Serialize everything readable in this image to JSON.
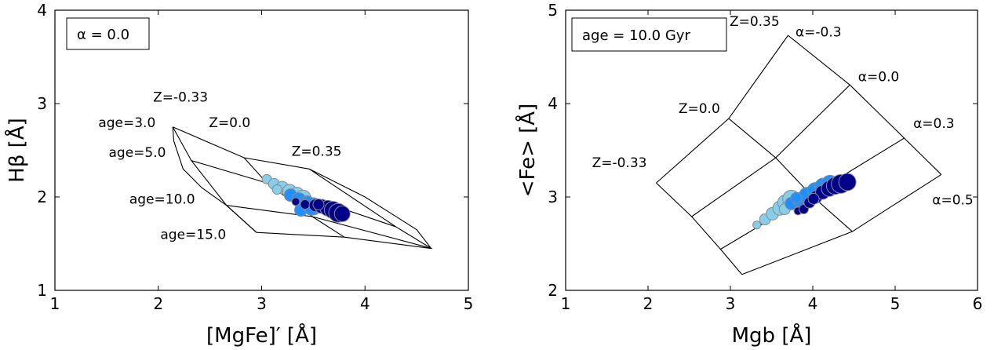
{
  "chart_data": [
    {
      "type": "scatter",
      "panel": "left",
      "xlabel": "[MgFe]′ [Å]",
      "ylabel": "Hβ [Å]",
      "xlim": [
        1,
        5
      ],
      "ylim": [
        1,
        4
      ],
      "xticks": [
        1,
        2,
        3,
        4,
        5
      ],
      "yticks": [
        1,
        2,
        3,
        4
      ],
      "grid": false,
      "legend_box": "α = 0.0",
      "legend_placement": "top-left",
      "model_grid": {
        "params_a": [
          "age=3.0",
          "age=5.0",
          "age=10.0",
          "age=15.0"
        ],
        "params_b": [
          "Z=-0.33",
          "Z=0.0",
          "Z=0.35"
        ],
        "points": [
          [
            [
              2.14,
              2.75
            ],
            [
              2.83,
              2.42
            ],
            [
              3.46,
              2.3
            ]
          ],
          [
            [
              2.32,
              2.39
            ],
            [
              3.05,
              2.15
            ],
            [
              4.3,
              1.68
            ]
          ],
          [
            [
              2.66,
              1.91
            ],
            [
              3.49,
              1.79
            ],
            [
              4.64,
              1.45
            ]
          ],
          [
            [
              2.95,
              1.62
            ],
            [
              3.8,
              1.57
            ],
            [
              4.63,
              1.45
            ]
          ]
        ],
        "outline_extra": [
          [
            2.14,
            2.75
          ],
          [
            2.15,
            2.6
          ],
          [
            2.24,
            2.3
          ],
          [
            2.42,
            2.1
          ],
          [
            2.66,
            1.91
          ],
          [
            2.95,
            1.62
          ]
        ],
        "right_edge": [
          [
            3.46,
            2.3
          ],
          [
            4.0,
            2.0
          ],
          [
            4.5,
            1.65
          ],
          [
            4.64,
            1.45
          ]
        ]
      },
      "annotations": [
        {
          "text": "Z=-0.33",
          "x": 1.95,
          "y": 3.02
        },
        {
          "text": "Z=0.0",
          "x": 2.49,
          "y": 2.75
        },
        {
          "text": "Z=0.35",
          "x": 3.29,
          "y": 2.44
        },
        {
          "text": "age=3.0",
          "x": 1.42,
          "y": 2.75
        },
        {
          "text": "age=5.0",
          "x": 1.52,
          "y": 2.43
        },
        {
          "text": "age=10.0",
          "x": 1.72,
          "y": 1.93
        },
        {
          "text": "age=15.0",
          "x": 2.02,
          "y": 1.55
        }
      ],
      "series": [
        {
          "color": "#87ceeb",
          "points": [
            [
              3.05,
              2.19,
              6
            ],
            [
              3.12,
              2.14,
              7
            ],
            [
              3.2,
              2.1,
              8
            ],
            [
              3.27,
              2.06,
              9
            ],
            [
              3.34,
              2.02,
              10
            ],
            [
              3.4,
              1.99,
              10
            ],
            [
              3.15,
              2.08,
              6
            ]
          ]
        },
        {
          "color": "#1e90ff",
          "points": [
            [
              3.28,
              2.02,
              8
            ],
            [
              3.36,
              1.97,
              9
            ],
            [
              3.44,
              1.93,
              10
            ],
            [
              3.5,
              1.9,
              11
            ],
            [
              3.38,
              1.86,
              8
            ],
            [
              3.48,
              1.88,
              9
            ],
            [
              3.45,
              1.95,
              7
            ]
          ]
        },
        {
          "color": "#00008b",
          "points": [
            [
              3.33,
              1.95,
              5
            ],
            [
              3.42,
              1.92,
              6
            ],
            [
              3.52,
              1.91,
              8
            ],
            [
              3.58,
              1.9,
              9
            ],
            [
              3.64,
              1.88,
              10
            ],
            [
              3.69,
              1.86,
              11
            ],
            [
              3.74,
              1.83,
              12
            ],
            [
              3.78,
              1.82,
              10
            ],
            [
              3.55,
              1.92,
              7
            ]
          ]
        }
      ]
    },
    {
      "type": "scatter",
      "panel": "right",
      "xlabel": "Mgb [Å]",
      "ylabel": "<Fe> [Å]",
      "xlim": [
        1,
        6
      ],
      "ylim": [
        2,
        5
      ],
      "xticks": [
        1,
        2,
        3,
        4,
        5,
        6
      ],
      "yticks": [
        2,
        3,
        4,
        5
      ],
      "grid": false,
      "legend_box": "age = 10.0 Gyr",
      "legend_placement": "top-left",
      "model_grid": {
        "params_a": [
          "α=-0.3",
          "α=0.0",
          "α=0.3",
          "α=0.5"
        ],
        "params_b": [
          "Z=-0.33",
          "Z=0.0",
          "Z=0.35"
        ],
        "points": [
          [
            [
              2.1,
              3.15
            ],
            [
              2.98,
              3.84
            ],
            [
              3.7,
              4.73
            ]
          ],
          [
            [
              2.53,
              2.79
            ],
            [
              3.55,
              3.42
            ],
            [
              4.45,
              4.2
            ]
          ],
          [
            [
              2.88,
              2.44
            ],
            [
              3.98,
              3.02
            ],
            [
              5.11,
              3.63
            ]
          ],
          [
            [
              3.14,
              2.17
            ],
            [
              4.48,
              2.63
            ],
            [
              5.56,
              3.24
            ]
          ]
        ]
      },
      "annotations": [
        {
          "text": "Z=0.35",
          "x": 2.99,
          "y": 4.83
        },
        {
          "text": "α=-0.3",
          "x": 3.79,
          "y": 4.72
        },
        {
          "text": "α=0.0",
          "x": 4.55,
          "y": 4.24
        },
        {
          "text": "Z=0.0",
          "x": 2.37,
          "y": 3.9
        },
        {
          "text": "α=0.3",
          "x": 5.22,
          "y": 3.74
        },
        {
          "text": "Z=-0.33",
          "x": 1.32,
          "y": 3.32
        },
        {
          "text": "α=0.5",
          "x": 5.45,
          "y": 2.92
        }
      ],
      "series": [
        {
          "color": "#87ceeb",
          "points": [
            [
              3.32,
              2.7,
              5
            ],
            [
              3.42,
              2.76,
              7
            ],
            [
              3.51,
              2.82,
              8
            ],
            [
              3.6,
              2.88,
              9
            ],
            [
              3.67,
              2.94,
              10
            ],
            [
              3.74,
              2.98,
              11
            ],
            [
              3.66,
              2.87,
              7
            ]
          ]
        },
        {
          "color": "#1e90ff",
          "points": [
            [
              3.74,
              2.93,
              8
            ],
            [
              3.84,
              2.97,
              9
            ],
            [
              3.93,
              3.02,
              10
            ],
            [
              4.03,
              3.07,
              10
            ],
            [
              4.13,
              3.11,
              11
            ],
            [
              4.21,
              3.14,
              11
            ],
            [
              3.8,
              2.99,
              7
            ]
          ]
        },
        {
          "color": "#00008b",
          "points": [
            [
              3.82,
              2.85,
              5
            ],
            [
              3.89,
              2.87,
              6
            ],
            [
              3.96,
              2.94,
              7
            ],
            [
              4.04,
              3.0,
              8
            ],
            [
              4.12,
              3.05,
              9
            ],
            [
              4.2,
              3.09,
              10
            ],
            [
              4.27,
              3.12,
              11
            ],
            [
              4.34,
              3.14,
              12
            ],
            [
              4.42,
              3.16,
              11
            ],
            [
              4.01,
              2.98,
              7
            ]
          ]
        }
      ]
    }
  ]
}
